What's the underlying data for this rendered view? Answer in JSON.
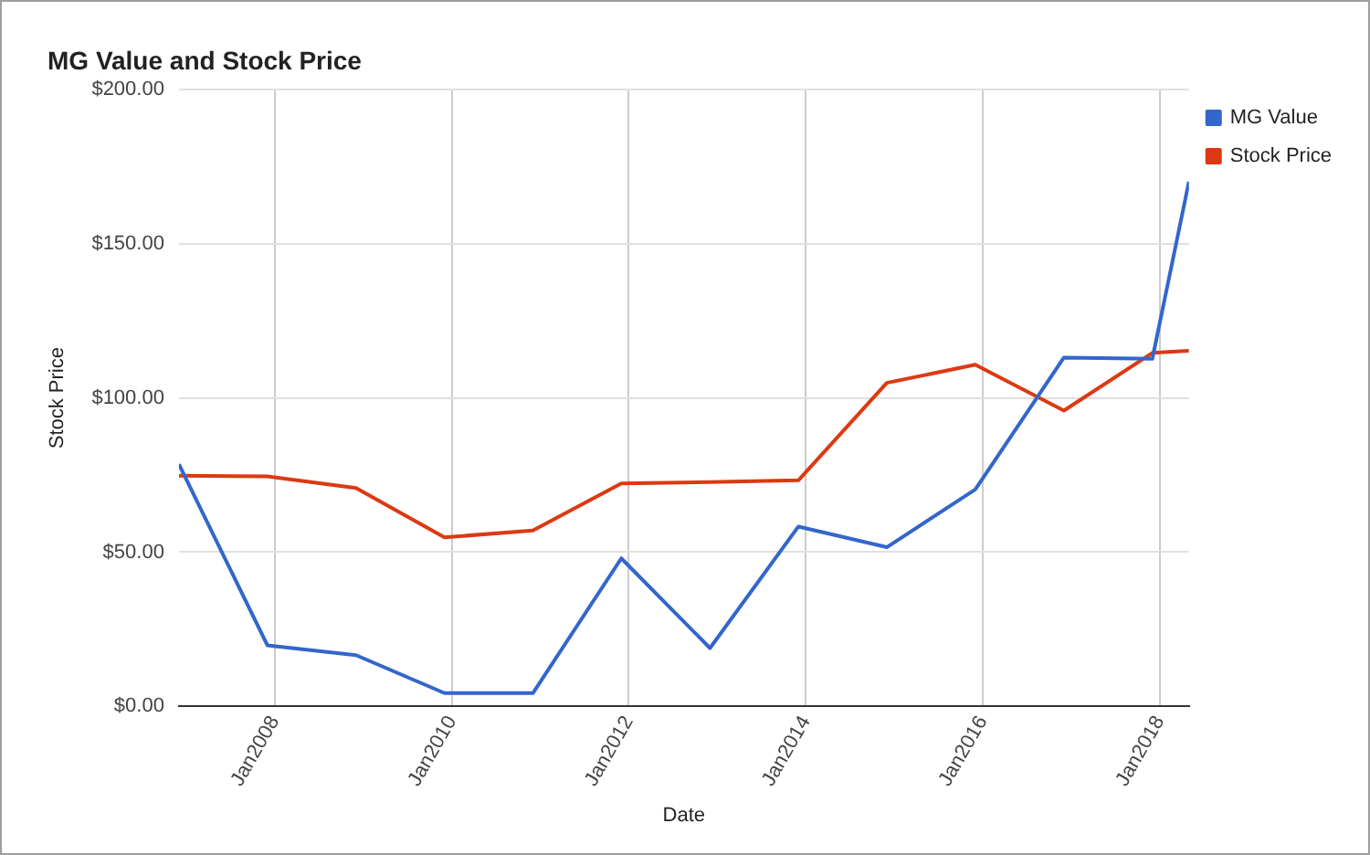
{
  "chart_data": {
    "type": "line",
    "title": "MG Value and Stock Price",
    "xlabel": "Date",
    "ylabel": "Stock Price",
    "x": [
      "2006-12",
      "2007-12",
      "2008-12",
      "2009-12",
      "2010-12",
      "2011-12",
      "2012-12",
      "2013-12",
      "2014-12",
      "2015-12",
      "2016-12",
      "2017-12",
      "2018-05"
    ],
    "series": [
      {
        "name": "MG Value",
        "color": "#3366cc",
        "values": [
          78.5,
          19.8,
          16.6,
          4.3,
          4.3,
          48.0,
          18.9,
          58.3,
          51.6,
          70.3,
          113.1,
          112.7,
          170.1
        ]
      },
      {
        "name": "Stock Price",
        "color": "#dc3912",
        "values": [
          74.8,
          74.6,
          70.8,
          54.8,
          57.0,
          72.3,
          72.7,
          73.3,
          104.9,
          110.8,
          95.9,
          114.6,
          115.3
        ]
      }
    ],
    "xlim": [
      "2006-12",
      "2018-05"
    ],
    "xticks": [
      {
        "value": "2008-01",
        "label": "Jan2008"
      },
      {
        "value": "2010-01",
        "label": "Jan2010"
      },
      {
        "value": "2012-01",
        "label": "Jan2012"
      },
      {
        "value": "2014-01",
        "label": "Jan2014"
      },
      {
        "value": "2016-01",
        "label": "Jan2016"
      },
      {
        "value": "2018-01",
        "label": "Jan2018"
      }
    ],
    "ylim": [
      0,
      200
    ],
    "yticks": [
      {
        "value": 0,
        "label": "$0.00"
      },
      {
        "value": 50,
        "label": "$50.00"
      },
      {
        "value": 100,
        "label": "$100.00"
      },
      {
        "value": 150,
        "label": "$150.00"
      },
      {
        "value": 200,
        "label": "$200.00"
      }
    ],
    "grid": true,
    "legend": "top right",
    "marker": "none",
    "line_style": "solid"
  }
}
